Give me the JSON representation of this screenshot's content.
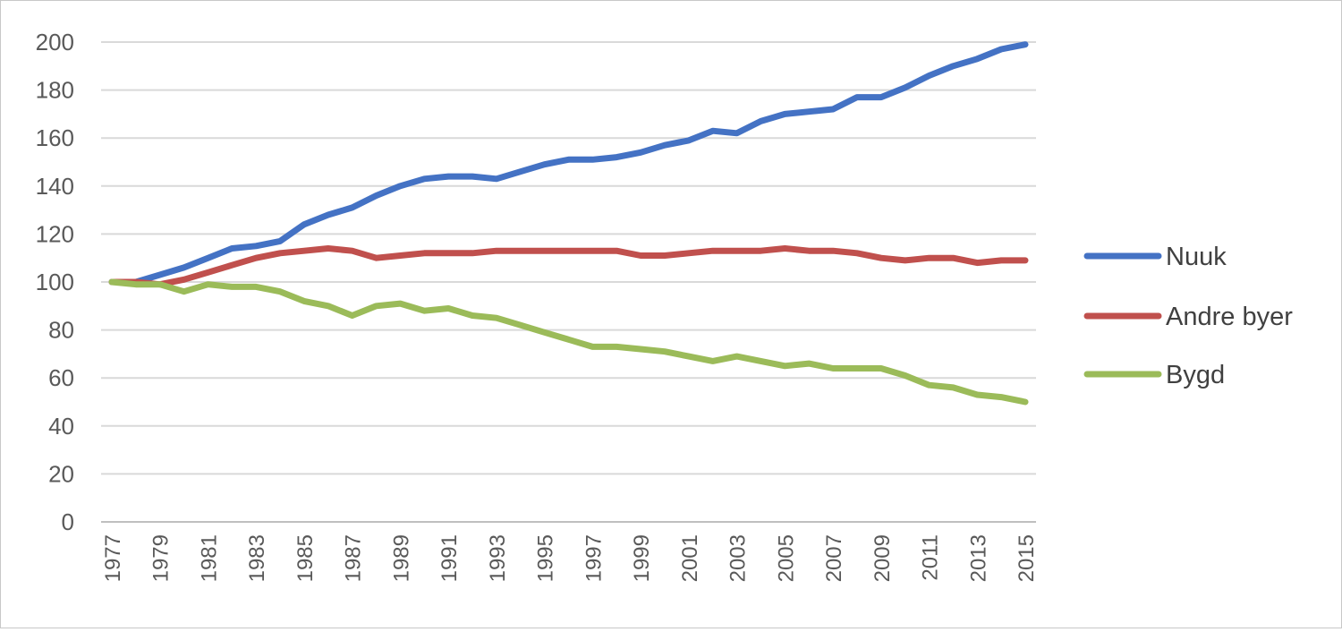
{
  "chart_data": {
    "type": "line",
    "title": "",
    "xlabel": "",
    "ylabel": "",
    "ylim": [
      0,
      200
    ],
    "yticks": [
      0,
      20,
      40,
      60,
      80,
      100,
      120,
      140,
      160,
      180,
      200
    ],
    "grid": "horizontal",
    "legend_position": "right",
    "x": [
      1977,
      1978,
      1979,
      1980,
      1981,
      1982,
      1983,
      1984,
      1985,
      1986,
      1987,
      1988,
      1989,
      1990,
      1991,
      1992,
      1993,
      1994,
      1995,
      1996,
      1997,
      1998,
      1999,
      2000,
      2001,
      2002,
      2003,
      2004,
      2005,
      2006,
      2007,
      2008,
      2009,
      2010,
      2011,
      2012,
      2013,
      2014,
      2015
    ],
    "x_tick_labels": [
      "1977",
      "1979",
      "1981",
      "1983",
      "1985",
      "1987",
      "1989",
      "1991",
      "1993",
      "1995",
      "1997",
      "1999",
      "2001",
      "2003",
      "2005",
      "2007",
      "2009",
      "2011",
      "2013",
      "2015"
    ],
    "series": [
      {
        "name": "Nuuk",
        "color": "#4472c4",
        "values": [
          100,
          100,
          103,
          106,
          110,
          114,
          115,
          117,
          124,
          128,
          131,
          136,
          140,
          143,
          144,
          144,
          143,
          146,
          149,
          151,
          151,
          152,
          154,
          157,
          159,
          163,
          162,
          167,
          170,
          171,
          172,
          177,
          177,
          181,
          186,
          190,
          193,
          197,
          199
        ]
      },
      {
        "name": "Andre byer",
        "color": "#c0504d",
        "values": [
          100,
          100,
          99,
          101,
          104,
          107,
          110,
          112,
          113,
          114,
          113,
          110,
          111,
          112,
          112,
          112,
          113,
          113,
          113,
          113,
          113,
          113,
          111,
          111,
          112,
          113,
          113,
          113,
          114,
          113,
          113,
          112,
          110,
          109,
          110,
          110,
          108,
          109,
          109
        ]
      },
      {
        "name": "Bygd",
        "color": "#9bbb59",
        "values": [
          100,
          99,
          99,
          96,
          99,
          98,
          98,
          96,
          92,
          90,
          86,
          90,
          91,
          88,
          89,
          86,
          85,
          82,
          79,
          76,
          73,
          73,
          72,
          71,
          69,
          67,
          69,
          67,
          65,
          66,
          64,
          64,
          64,
          61,
          57,
          56,
          53,
          52,
          50
        ]
      }
    ]
  }
}
